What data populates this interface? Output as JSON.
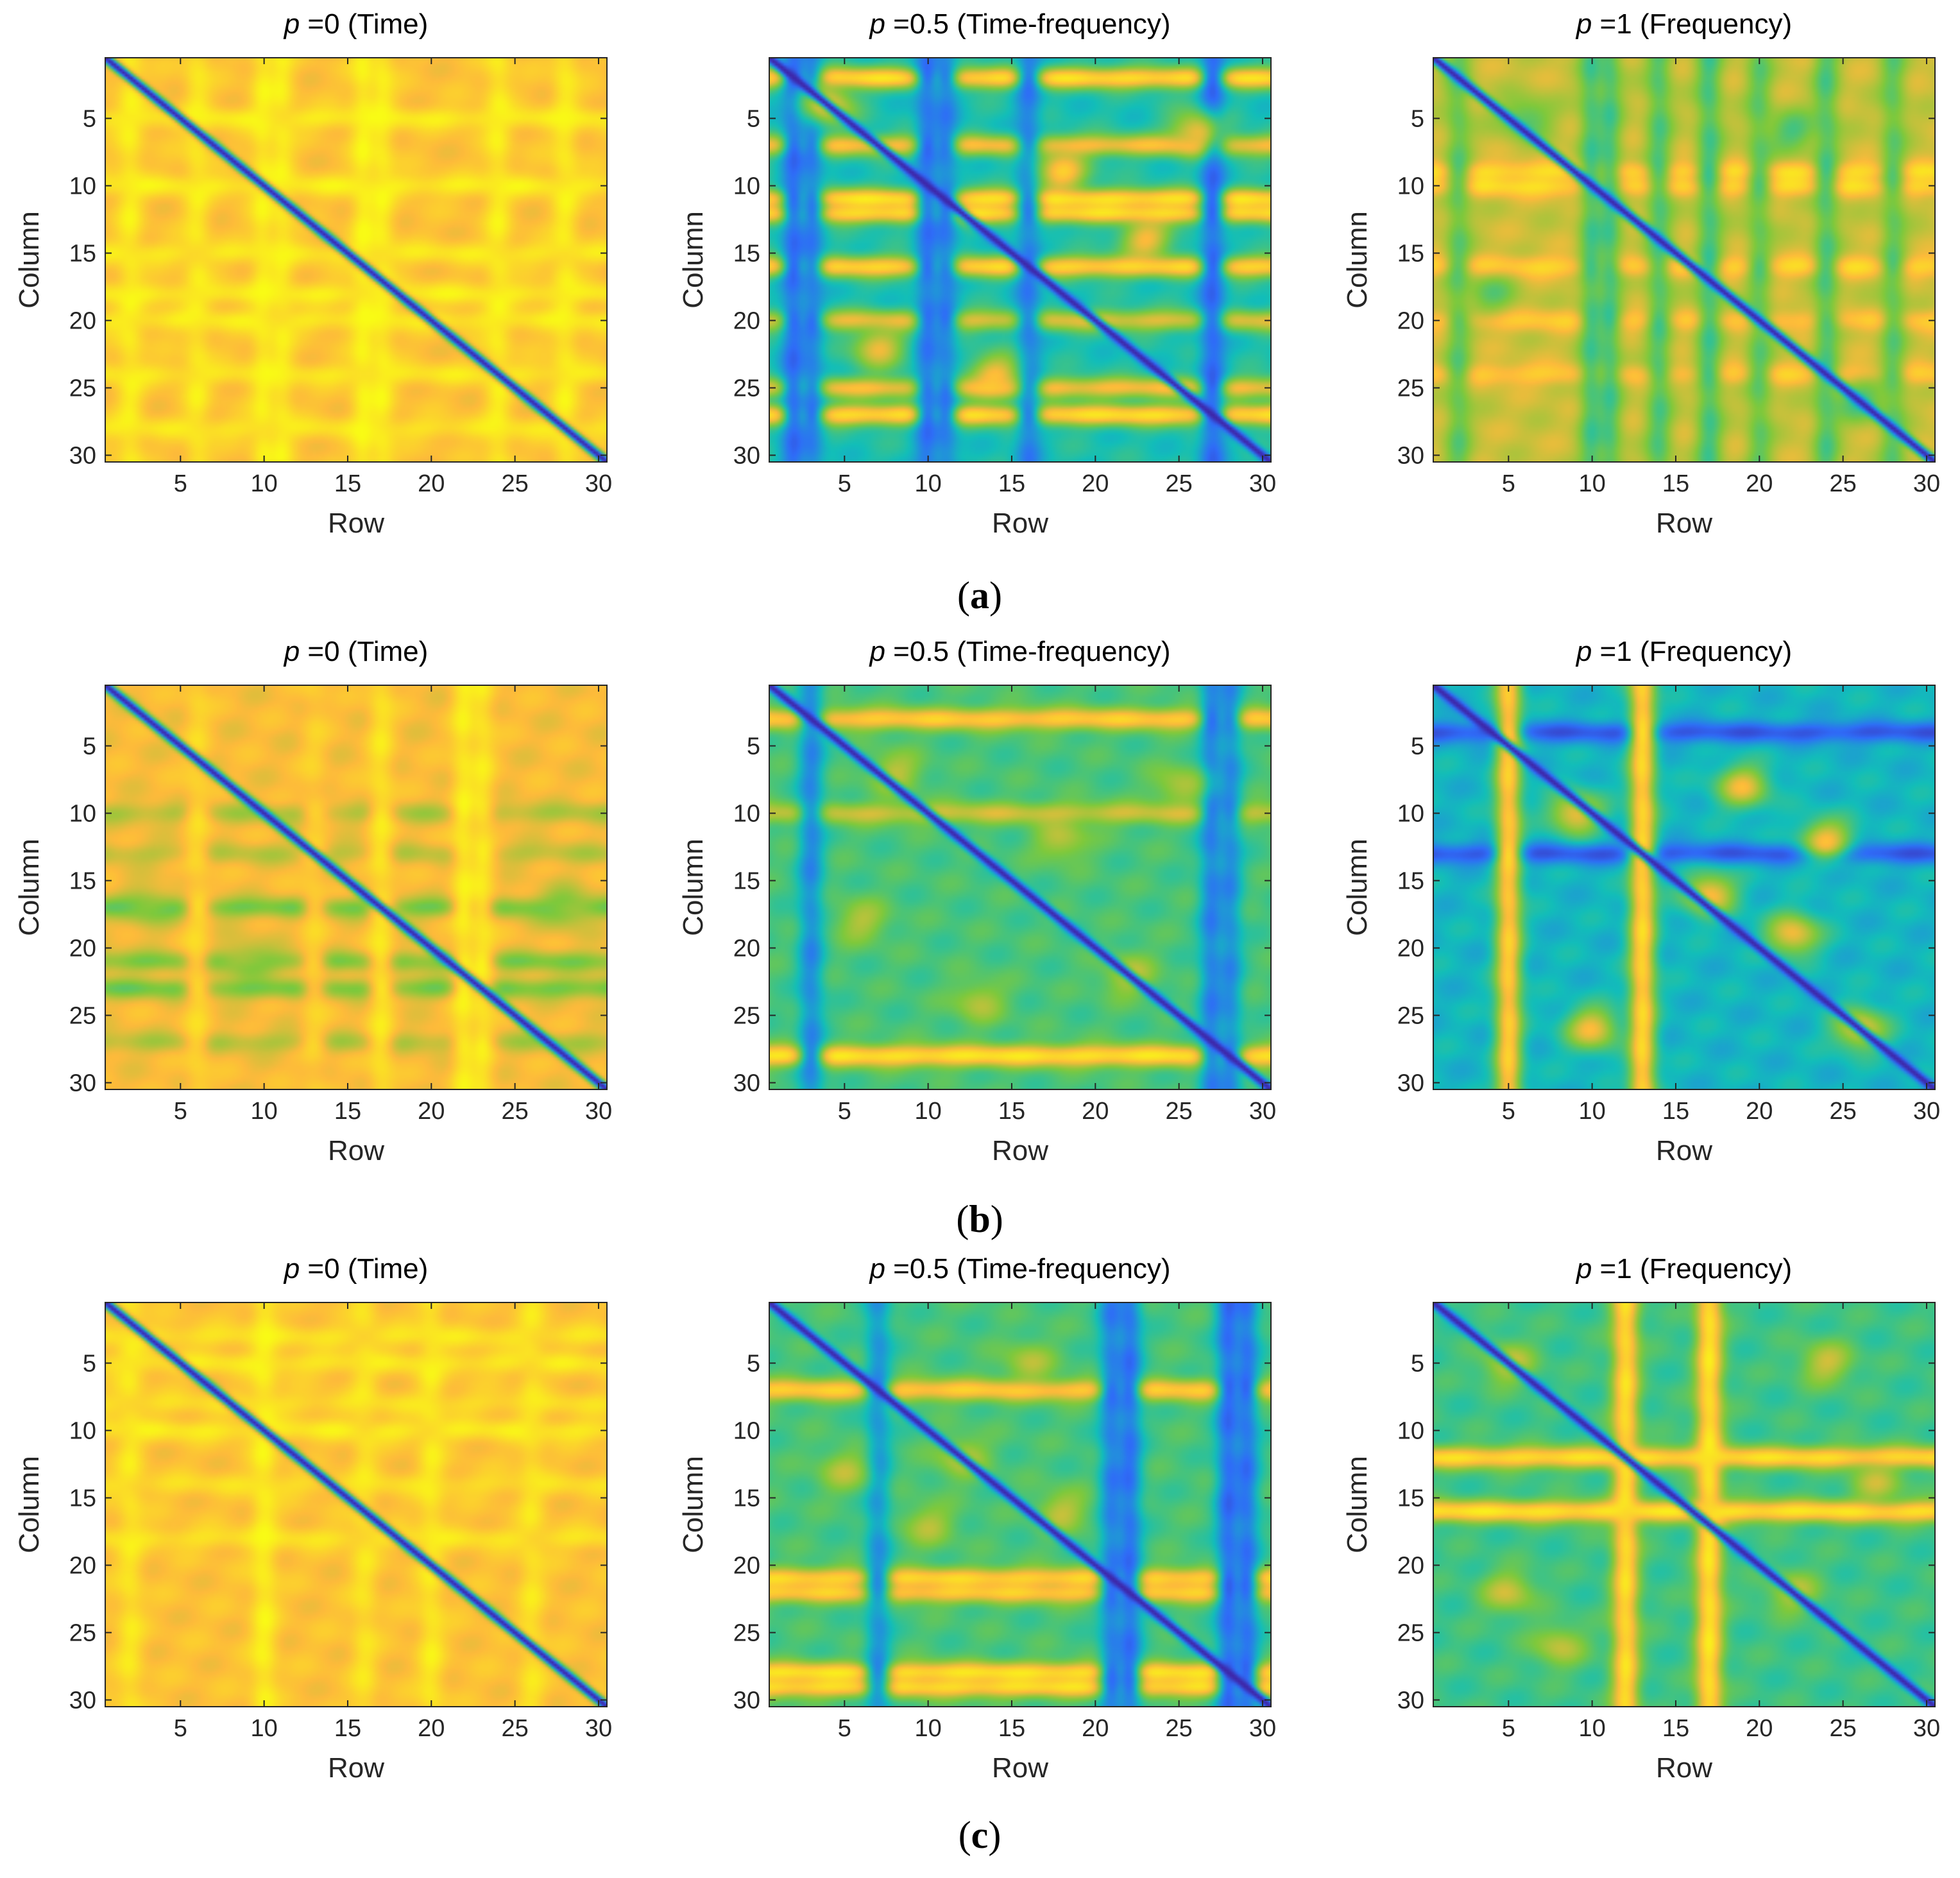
{
  "figure": {
    "colormap": [
      "#3e26a8",
      "#2f6cf8",
      "#12beb9",
      "#7fc93b",
      "#fdba3b",
      "#f9fb15"
    ]
  },
  "chart_data": [
    {
      "type": "heatmap",
      "group": "(a)",
      "title_var": "p",
      "title_rest": " =0 (Time)",
      "p": 0,
      "domain": "Time",
      "xlabel": "Row",
      "ylabel": "Column",
      "xlim": [
        0.5,
        30.5
      ],
      "ylim": [
        0.5,
        30.5
      ],
      "xticks": [
        5,
        10,
        15,
        20,
        25,
        30
      ],
      "yticks": [
        5,
        10,
        15,
        20,
        25,
        30
      ],
      "grid": false,
      "diagonal_value": 0,
      "base_level": 0.82,
      "row_bands": [
        5,
        10,
        15,
        18,
        20,
        24,
        28
      ],
      "col_bands": [
        2,
        6,
        10,
        11,
        16,
        17,
        24,
        28
      ],
      "row_band_values": [
        0.95,
        0.95,
        0.93,
        0.95,
        0.94,
        0.93,
        0.92
      ],
      "col_band_values": [
        0.95,
        0.94,
        0.96,
        0.95,
        0.97,
        0.96,
        0.95,
        0.95
      ],
      "blobs": []
    },
    {
      "type": "heatmap",
      "group": "(a)",
      "title_var": "p",
      "title_rest": " =0.5 (Time-frequency)",
      "p": 0.5,
      "domain": "Time-frequency",
      "xlabel": "Row",
      "ylabel": "Column",
      "xlim": [
        0.5,
        30.5
      ],
      "ylim": [
        0.5,
        30.5
      ],
      "xticks": [
        5,
        10,
        15,
        20,
        25,
        30
      ],
      "yticks": [
        5,
        10,
        15,
        20,
        25,
        30
      ],
      "grid": false,
      "diagonal_value": 0,
      "base_level": 0.42,
      "row_bands": [
        2,
        7,
        11,
        12,
        16,
        20,
        25,
        27
      ],
      "col_bands": [
        2,
        3,
        10,
        11,
        16,
        27
      ],
      "row_band_values": [
        0.9,
        0.8,
        0.92,
        0.9,
        0.88,
        0.75,
        0.8,
        0.9
      ],
      "col_band_values": [
        0.2,
        0.25,
        0.22,
        0.25,
        0.25,
        0.2
      ],
      "blobs": [
        [
          4,
          4,
          0.8
        ],
        [
          18,
          9,
          0.85
        ],
        [
          23,
          14,
          0.8
        ],
        [
          7,
          22,
          0.78
        ],
        [
          14,
          24,
          0.8
        ],
        [
          26,
          6,
          0.8
        ]
      ]
    },
    {
      "type": "heatmap",
      "group": "(a)",
      "title_var": "p",
      "title_rest": " =1 (Frequency)",
      "p": 1,
      "domain": "Frequency",
      "xlabel": "Row",
      "ylabel": "Column",
      "xlim": [
        0.5,
        30.5
      ],
      "ylim": [
        0.5,
        30.5
      ],
      "xticks": [
        5,
        10,
        15,
        20,
        25,
        30
      ],
      "yticks": [
        5,
        10,
        15,
        20,
        25,
        30
      ],
      "grid": false,
      "diagonal_value": 0,
      "base_level": 0.72,
      "row_bands": [
        9,
        10,
        16,
        20,
        24
      ],
      "col_bands": [
        2,
        10,
        11,
        14,
        17,
        20,
        24,
        28
      ],
      "row_band_values": [
        0.9,
        0.9,
        0.88,
        0.85,
        0.85
      ],
      "col_band_values": [
        0.55,
        0.5,
        0.5,
        0.52,
        0.5,
        0.55,
        0.52,
        0.55
      ],
      "blobs": [
        [
          6,
          5,
          0.5
        ],
        [
          22,
          6,
          0.5
        ],
        [
          4,
          18,
          0.55
        ],
        [
          26,
          26,
          0.5
        ]
      ]
    },
    {
      "type": "heatmap",
      "group": "(b)",
      "title_var": "p",
      "title_rest": " =0 (Time)",
      "p": 0,
      "domain": "Time",
      "xlabel": "Row",
      "ylabel": "Column",
      "xlim": [
        0.5,
        30.5
      ],
      "ylim": [
        0.5,
        30.5
      ],
      "xticks": [
        5,
        10,
        15,
        20,
        25,
        30
      ],
      "yticks": [
        5,
        10,
        15,
        20,
        25,
        30
      ],
      "grid": false,
      "diagonal_value": 0,
      "base_level": 0.8,
      "row_bands": [
        10,
        13,
        17,
        21,
        23,
        27
      ],
      "col_bands": [
        6,
        13,
        17,
        22,
        23
      ],
      "row_band_values": [
        0.68,
        0.7,
        0.58,
        0.6,
        0.58,
        0.68
      ],
      "col_band_values": [
        0.88,
        0.86,
        0.92,
        0.95,
        0.93
      ],
      "blobs": [
        [
          3,
          17,
          0.6
        ],
        [
          28,
          17,
          0.6
        ],
        [
          9,
          21,
          0.62
        ]
      ]
    },
    {
      "type": "heatmap",
      "group": "(b)",
      "title_var": "p",
      "title_rest": " =0.5 (Time-frequency)",
      "p": 0.5,
      "domain": "Time-frequency",
      "xlabel": "Row",
      "ylabel": "Column",
      "xlim": [
        0.5,
        30.5
      ],
      "ylim": [
        0.5,
        30.5
      ],
      "xticks": [
        5,
        10,
        15,
        20,
        25,
        30
      ],
      "yticks": [
        5,
        10,
        15,
        20,
        25,
        30
      ],
      "grid": false,
      "diagonal_value": 0,
      "base_level": 0.5,
      "row_bands": [
        3,
        10,
        28
      ],
      "col_bands": [
        3,
        27,
        28
      ],
      "row_band_values": [
        0.85,
        0.72,
        0.92
      ],
      "col_band_values": [
        0.28,
        0.25,
        0.28
      ],
      "blobs": [
        [
          8,
          7,
          0.7
        ],
        [
          18,
          12,
          0.7
        ],
        [
          6,
          18,
          0.68
        ],
        [
          22,
          22,
          0.7
        ],
        [
          13,
          24,
          0.68
        ],
        [
          25,
          8,
          0.68
        ]
      ]
    },
    {
      "type": "heatmap",
      "group": "(b)",
      "title_var": "p",
      "title_rest": " =1 (Frequency)",
      "p": 1,
      "domain": "Frequency",
      "xlabel": "Row",
      "ylabel": "Column",
      "xlim": [
        0.5,
        30.5
      ],
      "ylim": [
        0.5,
        30.5
      ],
      "xticks": [
        5,
        10,
        15,
        20,
        25,
        30
      ],
      "yticks": [
        5,
        10,
        15,
        20,
        25,
        30
      ],
      "grid": false,
      "diagonal_value": 0,
      "base_level": 0.38,
      "row_bands": [
        4,
        13
      ],
      "col_bands": [
        5,
        13
      ],
      "row_band_values": [
        0.15,
        0.15
      ],
      "col_band_values": [
        0.85,
        0.88
      ],
      "blobs": [
        [
          9,
          10,
          0.8
        ],
        [
          17,
          16,
          0.82
        ],
        [
          22,
          19,
          0.8
        ],
        [
          26,
          26,
          0.78
        ],
        [
          10,
          26,
          0.8
        ],
        [
          19,
          8,
          0.78
        ],
        [
          24,
          12,
          0.8
        ]
      ]
    },
    {
      "type": "heatmap",
      "group": "(c)",
      "title_var": "p",
      "title_rest": " =0 (Time)",
      "p": 0,
      "domain": "Time",
      "xlabel": "Row",
      "ylabel": "Column",
      "xlim": [
        0.5,
        30.5
      ],
      "ylim": [
        0.5,
        30.5
      ],
      "xticks": [
        5,
        10,
        15,
        20,
        25,
        30
      ],
      "yticks": [
        5,
        10,
        15,
        20,
        25,
        30
      ],
      "grid": false,
      "diagonal_value": 0,
      "base_level": 0.82,
      "row_bands": [
        3,
        5,
        8,
        10,
        14,
        18
      ],
      "col_bands": [
        2,
        10,
        16,
        20,
        26
      ],
      "row_band_values": [
        0.92,
        0.93,
        0.9,
        0.94,
        0.9,
        0.92
      ],
      "col_band_values": [
        0.93,
        0.96,
        0.92,
        0.94,
        0.92
      ],
      "blobs": []
    },
    {
      "type": "heatmap",
      "group": "(c)",
      "title_var": "p",
      "title_rest": " =0.5 (Time-frequency)",
      "p": 0.5,
      "domain": "Time-frequency",
      "xlabel": "Row",
      "ylabel": "Column",
      "xlim": [
        0.5,
        30.5
      ],
      "ylim": [
        0.5,
        30.5
      ],
      "xticks": [
        5,
        10,
        15,
        20,
        25,
        30
      ],
      "yticks": [
        5,
        10,
        15,
        20,
        25,
        30
      ],
      "grid": false,
      "diagonal_value": 0,
      "base_level": 0.5,
      "row_bands": [
        7,
        21,
        22,
        28,
        29
      ],
      "col_bands": [
        7,
        21,
        22,
        28,
        29
      ],
      "row_band_values": [
        0.85,
        0.88,
        0.85,
        0.92,
        0.9
      ],
      "col_band_values": [
        0.3,
        0.25,
        0.22,
        0.2,
        0.22
      ],
      "blobs": [
        [
          12,
          12,
          0.7
        ],
        [
          16,
          5,
          0.68
        ],
        [
          10,
          17,
          0.68
        ],
        [
          18,
          16,
          0.7
        ],
        [
          5,
          13,
          0.68
        ]
      ]
    },
    {
      "type": "heatmap",
      "group": "(c)",
      "title_var": "p",
      "title_rest": " =1 (Frequency)",
      "p": 1,
      "domain": "Frequency",
      "xlabel": "Row",
      "ylabel": "Column",
      "xlim": [
        0.5,
        30.5
      ],
      "ylim": [
        0.5,
        30.5
      ],
      "xticks": [
        5,
        10,
        15,
        20,
        25,
        30
      ],
      "yticks": [
        5,
        10,
        15,
        20,
        25,
        30
      ],
      "grid": false,
      "diagonal_value": 0,
      "base_level": 0.48,
      "row_bands": [
        12,
        16
      ],
      "col_bands": [
        12,
        17
      ],
      "row_band_values": [
        0.9,
        0.92
      ],
      "col_band_values": [
        0.9,
        0.92
      ],
      "blobs": [
        [
          5,
          5,
          0.72
        ],
        [
          24,
          5,
          0.72
        ],
        [
          5,
          22,
          0.72
        ],
        [
          22,
          22,
          0.7
        ],
        [
          27,
          14,
          0.7
        ],
        [
          8,
          26,
          0.7
        ]
      ]
    }
  ],
  "captions": [
    "(a)",
    "(b)",
    "(c)"
  ]
}
